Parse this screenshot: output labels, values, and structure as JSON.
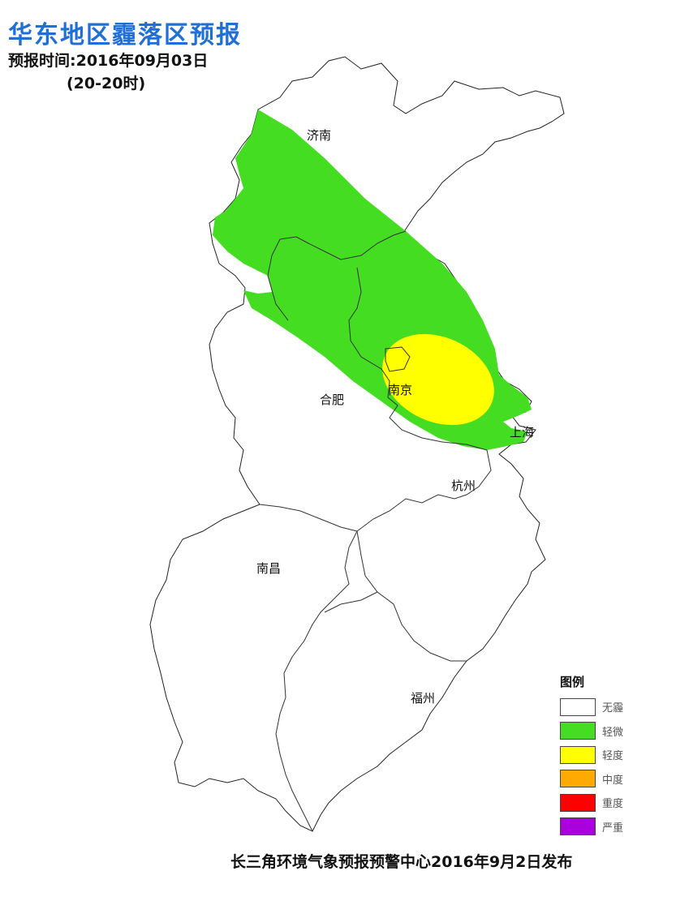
{
  "header": {
    "title": "华东地区霾落区预报",
    "forecast_time": "预报时间:2016年09月03日",
    "period": "(20-20时)"
  },
  "cities": {
    "jinan": "济南",
    "nanjing": "南京",
    "hefei": "合肥",
    "shanghai": "上海",
    "hangzhou": "杭州",
    "nanchang": "南昌",
    "fuzhou": "福州"
  },
  "legend": {
    "title": "图例",
    "items": [
      {
        "label": "无霾",
        "color": "#ffffff"
      },
      {
        "label": "轻微",
        "color": "#44dd22"
      },
      {
        "label": "轻度",
        "color": "#ffff00"
      },
      {
        "label": "中度",
        "color": "#ffaa00"
      },
      {
        "label": "重度",
        "color": "#ff0000"
      },
      {
        "label": "严重",
        "color": "#aa00dd"
      }
    ]
  },
  "footer": "长三角环境气象预报预警中心2016年9月2日发布"
}
